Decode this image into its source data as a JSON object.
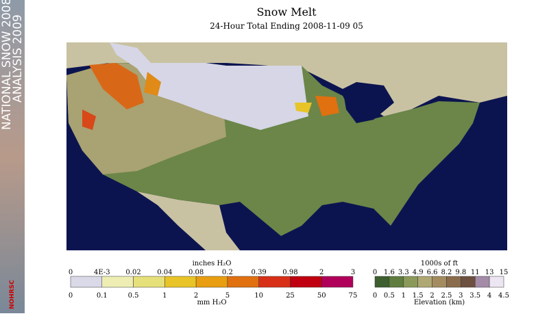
{
  "sidebar": {
    "line1": "NATIONAL SNOW 2008-",
    "line2": "ANALYSIS 2009",
    "logo": "NOHRSC"
  },
  "header": {
    "title": "Snow Melt",
    "subtitle": "24-Hour Total Ending 2008-11-09 05"
  },
  "melt_legend": {
    "top_title": "inches H₂O",
    "bottom_title": "mm H₂O",
    "top_labels": [
      "0",
      "4E-3",
      "0.02",
      "0.04",
      "0.08",
      "0.2",
      "0.39",
      "0.98",
      "2",
      "3"
    ],
    "bottom_labels": [
      "0",
      "0.1",
      "0.5",
      "1",
      "2",
      "5",
      "10",
      "25",
      "50",
      "75"
    ],
    "colors": [
      "#d9d9e8",
      "#eeeeb4",
      "#e6e07a",
      "#e8c428",
      "#e89e10",
      "#e07010",
      "#d83018",
      "#c00010",
      "#b0005a"
    ]
  },
  "elevation_legend": {
    "top_title": "1000s of ft",
    "bottom_title": "Elevation (km)",
    "top_labels": [
      "0",
      "1.6",
      "3.3",
      "4.9",
      "6.6",
      "8.2",
      "9.8",
      "11",
      "13",
      "15"
    ],
    "bottom_labels": [
      "0",
      "0.5",
      "1",
      "1.5",
      "2",
      "2.5",
      "3",
      "3.5",
      "4",
      "4.5"
    ],
    "colors": [
      "#3d5e2e",
      "#5f7d3e",
      "#8b9a5a",
      "#b0a874",
      "#a48c60",
      "#8a6c4c",
      "#6e5040",
      "#a48ca8",
      "#ece6f2"
    ]
  }
}
